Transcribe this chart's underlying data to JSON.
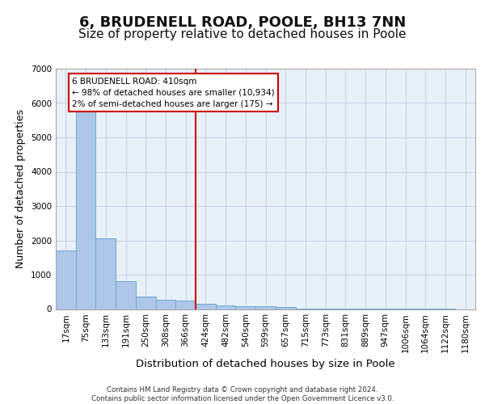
{
  "title": "6, BRUDENELL ROAD, POOLE, BH13 7NN",
  "subtitle": "Size of property relative to detached houses in Poole",
  "xlabel": "Distribution of detached houses by size in Poole",
  "ylabel": "Number of detached properties",
  "footer_line1": "Contains HM Land Registry data © Crown copyright and database right 2024.",
  "footer_line2": "Contains public sector information licensed under the Open Government Licence v3.0.",
  "bin_labels": [
    "17sqm",
    "75sqm",
    "133sqm",
    "191sqm",
    "250sqm",
    "308sqm",
    "366sqm",
    "424sqm",
    "482sqm",
    "540sqm",
    "599sqm",
    "657sqm",
    "715sqm",
    "773sqm",
    "831sqm",
    "889sqm",
    "947sqm",
    "1006sqm",
    "1064sqm",
    "1122sqm",
    "1180sqm"
  ],
  "bar_heights": [
    1700,
    5900,
    2050,
    820,
    355,
    270,
    240,
    150,
    105,
    80,
    80,
    50,
    5,
    5,
    5,
    5,
    5,
    5,
    5,
    5,
    0
  ],
  "bar_color": "#aec6e8",
  "bar_edge_color": "#6aaad4",
  "vline_color": "#cc0000",
  "vline_bar_index": 7,
  "annotation_text": "6 BRUDENELL ROAD: 410sqm\n← 98% of detached houses are smaller (10,934)\n2% of semi-detached houses are larger (175) →",
  "annotation_box_color": "#cc0000",
  "ylim": [
    0,
    7000
  ],
  "yticks": [
    0,
    1000,
    2000,
    3000,
    4000,
    5000,
    6000,
    7000
  ],
  "grid_color": "#c8d8e8",
  "bg_color": "#e8f0f8",
  "title_fontsize": 13,
  "subtitle_fontsize": 11,
  "axis_fontsize": 9,
  "tick_fontsize": 7.5
}
